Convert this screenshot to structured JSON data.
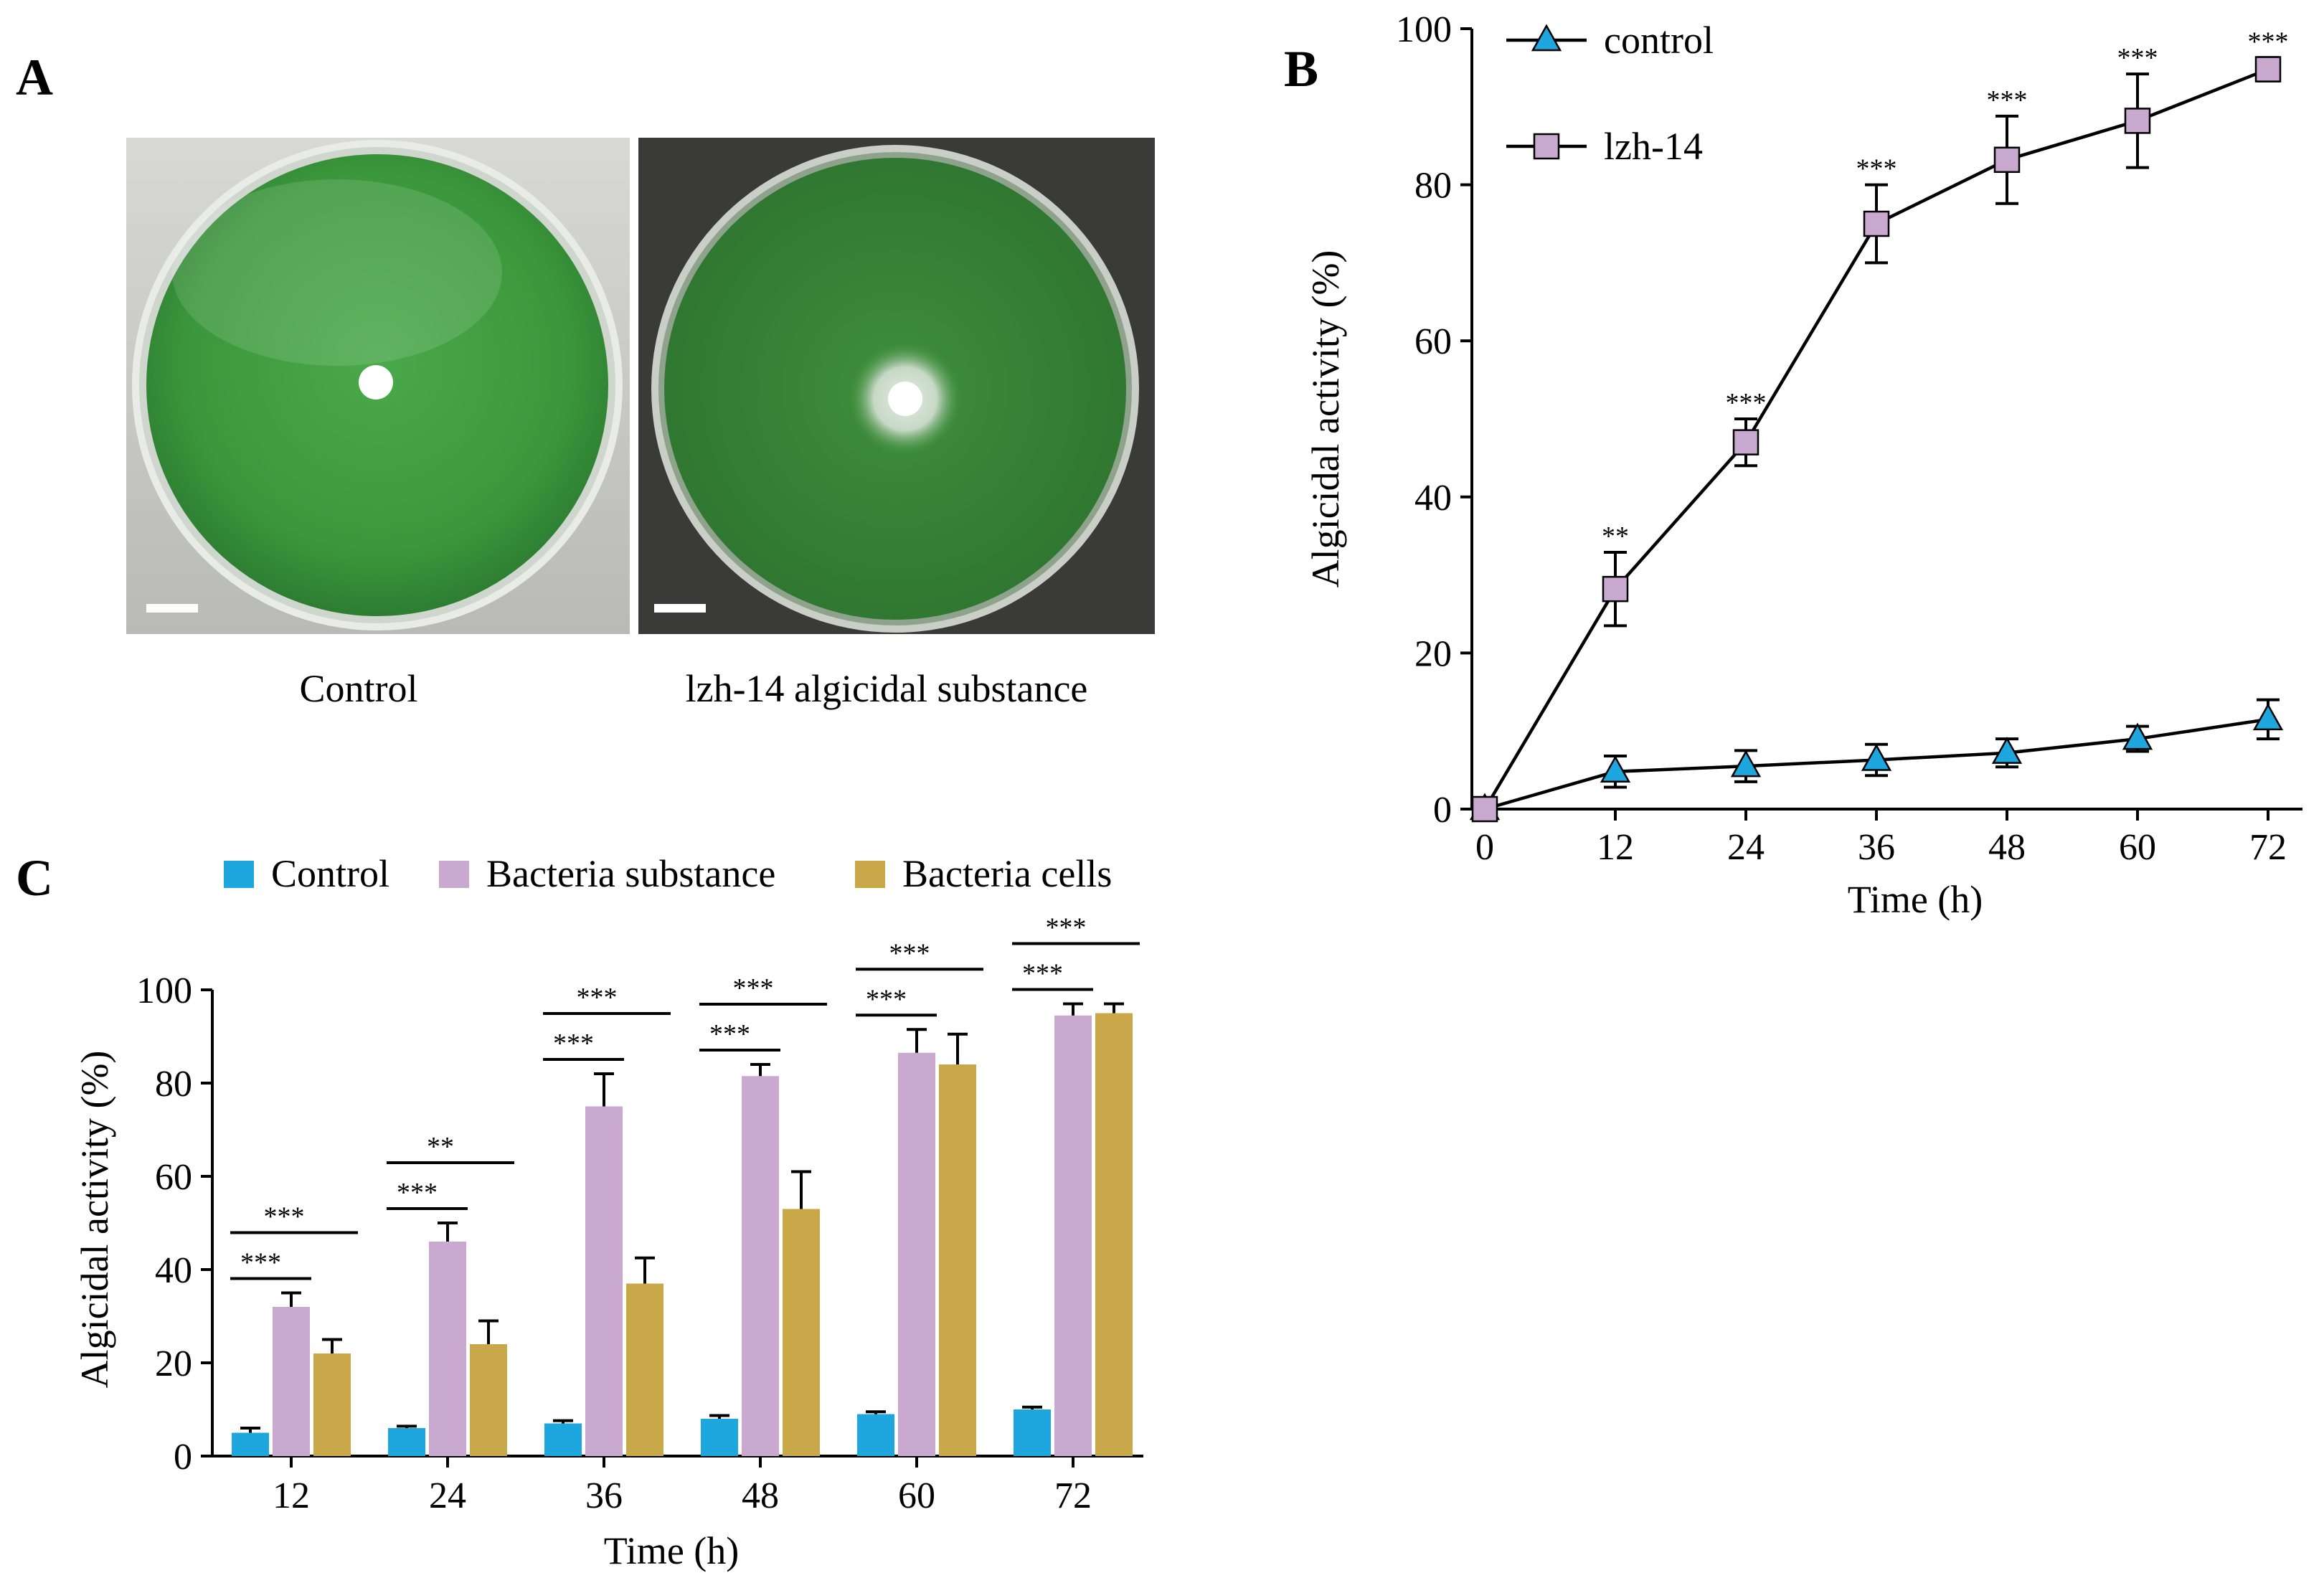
{
  "panels": {
    "a": {
      "letter": "A",
      "left_caption": "Control",
      "right_caption": "lzh-14 algicidal substance"
    },
    "b": {
      "letter": "B"
    },
    "c": {
      "letter": "C"
    }
  },
  "colors": {
    "control": "#1ea7df",
    "substance": "#c9a9cf",
    "cells": "#c9a84a",
    "plate_green": "#3f9b3f",
    "plate_green_dark": "#2e7a32"
  },
  "chart_data": [
    {
      "type": "line",
      "panel": "B",
      "xlabel": "Time (h)",
      "ylabel": "Algicidal activity (%)",
      "x": [
        0,
        12,
        24,
        36,
        48,
        60,
        72
      ],
      "xticks": [
        "0",
        "12",
        "24",
        "36",
        "48",
        "60",
        "72"
      ],
      "yticks": [
        "0",
        "20",
        "40",
        "60",
        "80",
        "100"
      ],
      "ylim": [
        0,
        100
      ],
      "legend": "top-left",
      "series": [
        {
          "name": "control",
          "marker": "triangle",
          "values": [
            0,
            4.8,
            5.5,
            6.3,
            7.2,
            9.0,
            11.5
          ],
          "err": [
            0,
            2.0,
            2.0,
            2.0,
            1.8,
            1.6,
            2.5
          ],
          "sig": [
            "",
            "",
            "",
            "",
            "",
            "",
            ""
          ]
        },
        {
          "name": "lzh-14",
          "marker": "square",
          "values": [
            0,
            28.2,
            47.0,
            75.0,
            83.2,
            88.2,
            94.8
          ],
          "err": [
            0,
            4.7,
            3.0,
            5.0,
            5.6,
            6.0,
            1.5
          ],
          "sig": [
            "",
            "**",
            "***",
            "***",
            "***",
            "***",
            "***"
          ]
        }
      ]
    },
    {
      "type": "bar",
      "panel": "C",
      "xlabel": "Time (h)",
      "ylabel": "Algicidal activity (%)",
      "categories": [
        "12",
        "24",
        "36",
        "48",
        "60",
        "72"
      ],
      "yticks": [
        "0",
        "20",
        "40",
        "60",
        "80",
        "100"
      ],
      "ylim": [
        0,
        100
      ],
      "legend": "top",
      "series": [
        {
          "name": "Control",
          "values": [
            5.0,
            6.0,
            7.0,
            8.0,
            9.0,
            10.0
          ],
          "err": [
            1.0,
            0.4,
            0.6,
            0.7,
            0.5,
            0.5
          ]
        },
        {
          "name": "Bacteria substance",
          "values": [
            32.0,
            46.0,
            75.0,
            81.5,
            86.5,
            94.5
          ],
          "err": [
            3.0,
            4.0,
            7.0,
            2.5,
            5.0,
            2.5
          ]
        },
        {
          "name": "Bacteria cells",
          "values": [
            22.0,
            24.0,
            37.0,
            53.0,
            84.0,
            95.0
          ],
          "err": [
            3.0,
            5.0,
            5.5,
            8.0,
            6.5,
            2.0
          ]
        }
      ],
      "comparisons": [
        {
          "lower": "***",
          "upper": "***"
        },
        {
          "lower": "***",
          "upper": "**"
        },
        {
          "lower": "***",
          "upper": "***"
        },
        {
          "lower": "***",
          "upper": "***"
        },
        {
          "lower": "***",
          "upper": "***"
        },
        {
          "lower": "***",
          "upper": "***"
        }
      ]
    }
  ]
}
